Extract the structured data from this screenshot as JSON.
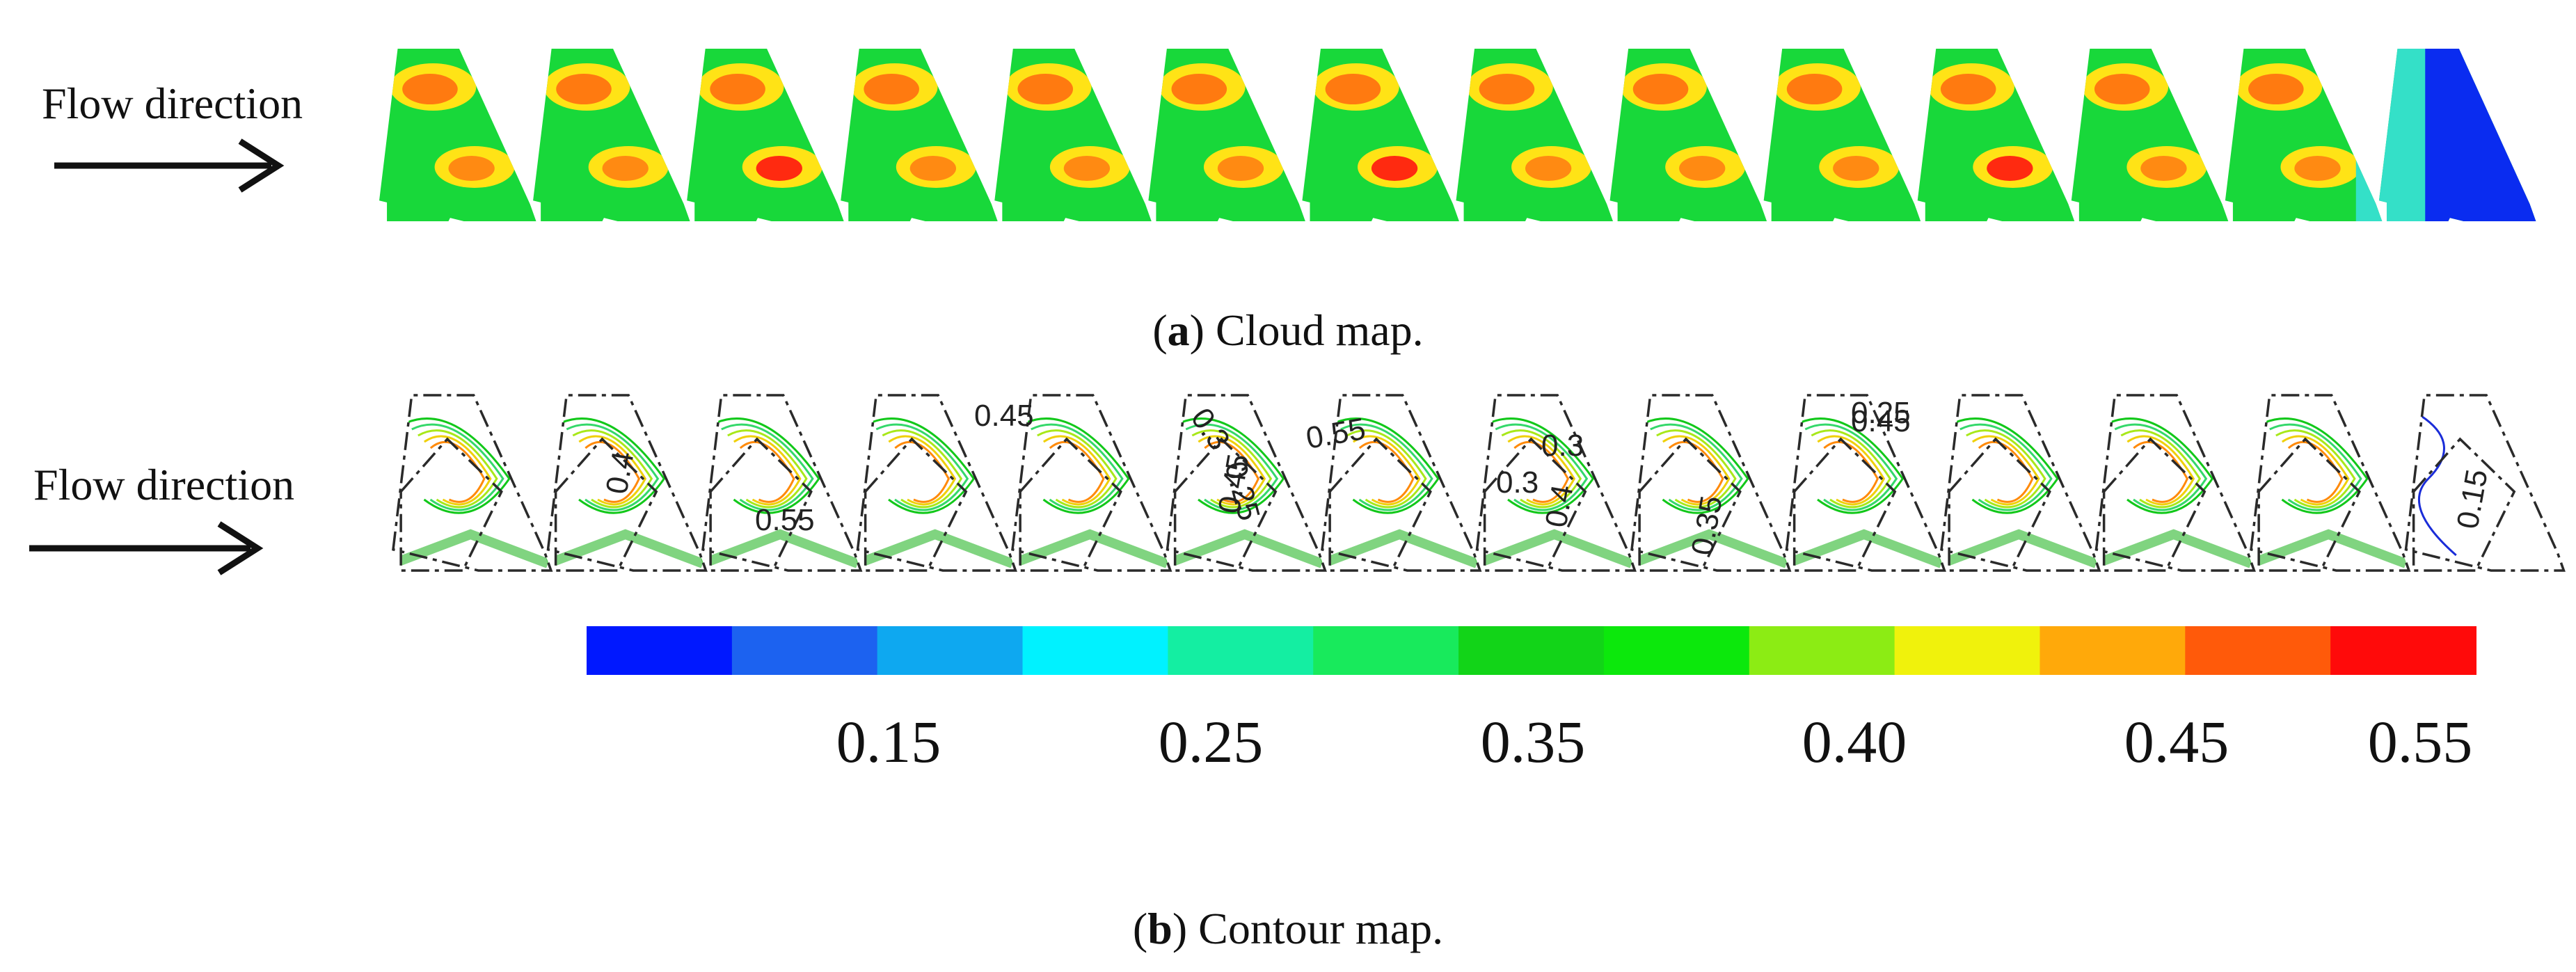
{
  "panel_a": {
    "flow_label": "Flow direction",
    "caption_letter": "a",
    "caption_text": "Cloud map."
  },
  "panel_b": {
    "flow_label": "Flow direction",
    "caption_letter": "b",
    "caption_text": "Contour map.",
    "contour_labels": [
      "0.45",
      "0.3",
      "0.25",
      "0.55",
      "0.3",
      "0.45",
      "0.25",
      "0.4",
      "0.55",
      "0.45",
      "0.3",
      "0.4",
      "0.35",
      "0.15"
    ]
  },
  "colorbar": {
    "ticks": [
      "0.15",
      "0.25",
      "0.35",
      "0.40",
      "0.45",
      "0.55"
    ],
    "colors": [
      "#0018ff",
      "#1c62f0",
      "#0ea8f0",
      "#00f2ff",
      "#14eea2",
      "#18ea5c",
      "#12d418",
      "#0ce80c",
      "#8cec14",
      "#f0f20c",
      "#ffa90a",
      "#ff5a0a",
      "#ff0a0a"
    ]
  },
  "colors": {
    "ink": "#111111",
    "outline": "#2a2a2a"
  }
}
